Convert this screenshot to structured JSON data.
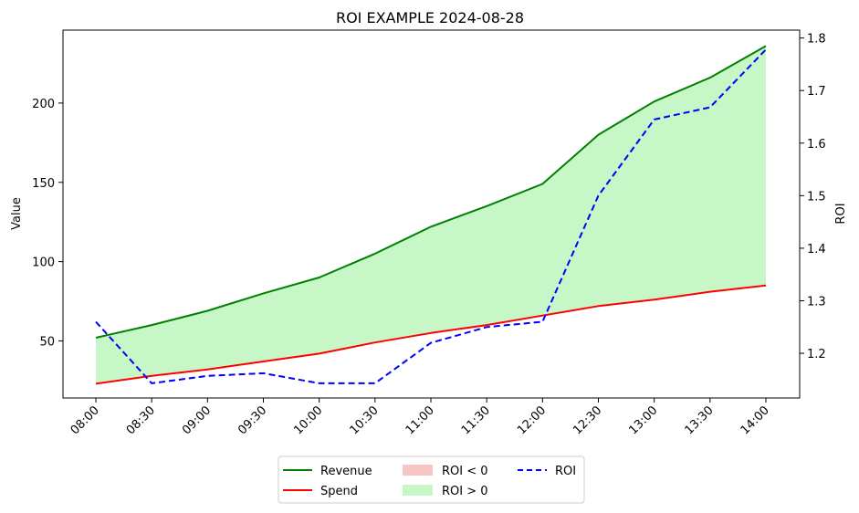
{
  "chart_data": {
    "type": "line",
    "title": "ROI EXAMPLE 2024-08-28",
    "xlabel": "",
    "ylabel": "Value",
    "y2label": "ROI",
    "categories": [
      "08:00",
      "08:30",
      "09:00",
      "09:30",
      "10:00",
      "10:30",
      "11:00",
      "11:30",
      "12:00",
      "12:30",
      "13:00",
      "13:30",
      "14:00"
    ],
    "ylim": [
      14,
      246
    ],
    "yticks": [
      50,
      100,
      150,
      200
    ],
    "y2lim": [
      1.115,
      1.815
    ],
    "y2ticks": [
      1.2,
      1.3,
      1.4,
      1.5,
      1.6,
      1.7,
      1.8
    ],
    "grid": false,
    "legend_position": "bottom-center",
    "series": [
      {
        "name": "Revenue",
        "axis": "left",
        "style": "solid",
        "color": "#008000",
        "values": [
          52,
          60,
          69,
          80,
          90,
          105,
          122,
          135,
          149,
          180,
          201,
          216,
          236
        ]
      },
      {
        "name": "Spend",
        "axis": "left",
        "style": "solid",
        "color": "#ff0000",
        "values": [
          23,
          28,
          32,
          37,
          42,
          49,
          55,
          60,
          66,
          72,
          76,
          81,
          85
        ]
      },
      {
        "name": "ROI",
        "axis": "right",
        "style": "dashed",
        "color": "#0000ff",
        "values": [
          1.26,
          1.143,
          1.157,
          1.162,
          1.143,
          1.143,
          1.22,
          1.25,
          1.26,
          1.5,
          1.645,
          1.668,
          1.778
        ]
      }
    ],
    "fills": [
      {
        "name": "ROI < 0",
        "color": "#f4a6a6"
      },
      {
        "name": "ROI > 0",
        "color": "#90ee90"
      }
    ]
  }
}
